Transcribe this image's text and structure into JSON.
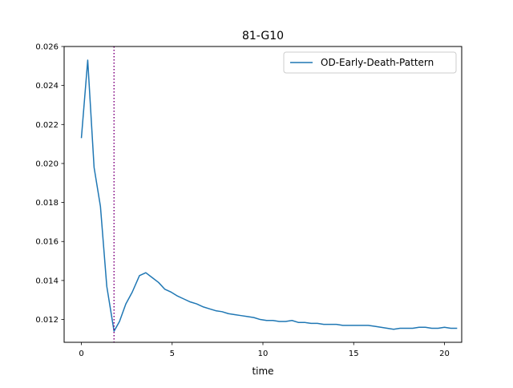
{
  "chart_data": {
    "type": "line",
    "title": "81-G10",
    "xlabel": "time",
    "ylabel": "",
    "xlim": [
      -0.95,
      20.95
    ],
    "ylim": [
      0.01083,
      0.026
    ],
    "xticks": [
      0,
      5,
      10,
      15,
      20
    ],
    "xtick_labels": [
      "0",
      "5",
      "10",
      "15",
      "20"
    ],
    "yticks": [
      0.012,
      0.014,
      0.016,
      0.018,
      0.02,
      0.022,
      0.024,
      0.026
    ],
    "ytick_labels": [
      "0.012",
      "0.014",
      "0.016",
      "0.018",
      "0.020",
      "0.022",
      "0.024",
      "0.026"
    ],
    "grid": false,
    "legend_position": "upper right",
    "vline": {
      "x": 1.8,
      "color": "#800080",
      "style": "dotted"
    },
    "series": [
      {
        "name": "OD-Early-Death-Pattern",
        "color": "#1f77b4",
        "x": [
          0.0,
          0.35,
          0.7,
          1.05,
          1.4,
          1.8,
          2.1,
          2.45,
          2.8,
          3.2,
          3.55,
          3.9,
          4.25,
          4.6,
          4.95,
          5.3,
          5.65,
          6.0,
          6.35,
          6.7,
          7.05,
          7.4,
          7.75,
          8.1,
          8.45,
          8.8,
          9.15,
          9.5,
          9.85,
          10.2,
          10.55,
          10.9,
          11.25,
          11.6,
          11.95,
          12.3,
          12.65,
          13.0,
          13.35,
          13.7,
          14.05,
          14.4,
          14.75,
          15.1,
          15.45,
          15.8,
          16.15,
          16.5,
          16.85,
          17.2,
          17.55,
          17.9,
          18.25,
          18.6,
          18.95,
          19.3,
          19.65,
          20.0,
          20.35,
          20.7
        ],
        "y": [
          0.0213,
          0.0253,
          0.0198,
          0.0178,
          0.0137,
          0.0114,
          0.0119,
          0.0128,
          0.0134,
          0.01425,
          0.0144,
          0.01415,
          0.0139,
          0.01355,
          0.0134,
          0.0132,
          0.01305,
          0.0129,
          0.0128,
          0.01265,
          0.01255,
          0.01245,
          0.0124,
          0.0123,
          0.01225,
          0.0122,
          0.01215,
          0.0121,
          0.012,
          0.01195,
          0.01195,
          0.0119,
          0.0119,
          0.01195,
          0.01185,
          0.01185,
          0.0118,
          0.0118,
          0.01175,
          0.01175,
          0.01175,
          0.0117,
          0.0117,
          0.0117,
          0.0117,
          0.0117,
          0.01165,
          0.0116,
          0.01155,
          0.0115,
          0.01155,
          0.01155,
          0.01155,
          0.0116,
          0.0116,
          0.01155,
          0.01155,
          0.0116,
          0.01155,
          0.01155
        ]
      }
    ]
  }
}
